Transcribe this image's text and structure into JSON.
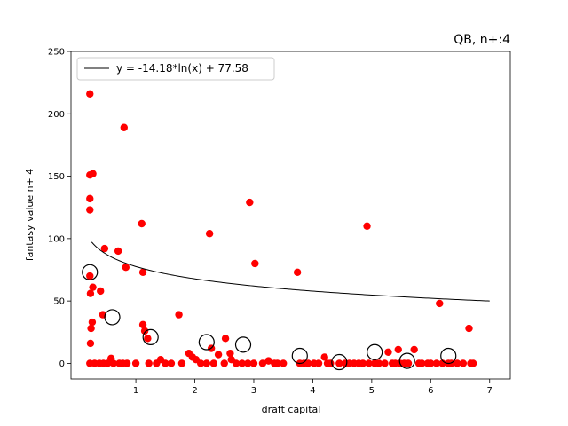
{
  "chart_data": {
    "type": "scatter",
    "title": "QB, n+:4",
    "xlabel": "draft capital",
    "ylabel": "fantasy value n+ 4",
    "xlim": [
      -0.1,
      7.35
    ],
    "ylim": [
      -12.5,
      250
    ],
    "xticks": [
      1,
      2,
      3,
      4,
      5,
      6,
      7
    ],
    "yticks": [
      0,
      50,
      100,
      150,
      200,
      250
    ],
    "legend": {
      "position": "top-left",
      "entries": [
        "y = -14.18*ln(x) + 77.58"
      ]
    },
    "fit": {
      "a": -14.18,
      "b": 77.58,
      "x_range": [
        0.25,
        7.0
      ],
      "color": "#000000"
    },
    "series": [
      {
        "marker": "dot",
        "color": "#ff0000",
        "points": [
          [
            0.22,
            216
          ],
          [
            0.22,
            151
          ],
          [
            0.27,
            152
          ],
          [
            0.22,
            132
          ],
          [
            0.22,
            123
          ],
          [
            0.22,
            70
          ],
          [
            0.27,
            61
          ],
          [
            0.23,
            56
          ],
          [
            0.26,
            33
          ],
          [
            0.24,
            28
          ],
          [
            0.23,
            16
          ],
          [
            0.22,
            0
          ],
          [
            0.3,
            0
          ],
          [
            0.4,
            58
          ],
          [
            0.47,
            92
          ],
          [
            0.44,
            39
          ],
          [
            0.38,
            0
          ],
          [
            0.45,
            0
          ],
          [
            0.52,
            0
          ],
          [
            0.58,
            4
          ],
          [
            0.62,
            0
          ],
          [
            0.7,
            90
          ],
          [
            0.8,
            189
          ],
          [
            0.83,
            77
          ],
          [
            0.72,
            0
          ],
          [
            0.78,
            0
          ],
          [
            0.85,
            0
          ],
          [
            1.0,
            0
          ],
          [
            1.1,
            112
          ],
          [
            1.12,
            73
          ],
          [
            1.12,
            31
          ],
          [
            1.15,
            26
          ],
          [
            1.2,
            20
          ],
          [
            1.22,
            0
          ],
          [
            1.35,
            0
          ],
          [
            1.42,
            3
          ],
          [
            1.5,
            0
          ],
          [
            1.6,
            0
          ],
          [
            1.73,
            39
          ],
          [
            1.78,
            0
          ],
          [
            1.9,
            8
          ],
          [
            1.96,
            5
          ],
          [
            2.02,
            3
          ],
          [
            2.1,
            0
          ],
          [
            2.2,
            0
          ],
          [
            2.25,
            104
          ],
          [
            2.28,
            12
          ],
          [
            2.32,
            0
          ],
          [
            2.4,
            7
          ],
          [
            2.52,
            20
          ],
          [
            2.5,
            0
          ],
          [
            2.6,
            8
          ],
          [
            2.62,
            3
          ],
          [
            2.7,
            0
          ],
          [
            2.8,
            0
          ],
          [
            2.9,
            0
          ],
          [
            2.93,
            129
          ],
          [
            3.0,
            0
          ],
          [
            3.02,
            80
          ],
          [
            3.15,
            0
          ],
          [
            3.25,
            2
          ],
          [
            3.35,
            0
          ],
          [
            3.4,
            0
          ],
          [
            3.5,
            0
          ],
          [
            3.74,
            73
          ],
          [
            3.78,
            0
          ],
          [
            3.85,
            0
          ],
          [
            3.92,
            0
          ],
          [
            4.02,
            0
          ],
          [
            4.1,
            0
          ],
          [
            4.2,
            5
          ],
          [
            4.25,
            0
          ],
          [
            4.3,
            0
          ],
          [
            4.45,
            0
          ],
          [
            4.55,
            0
          ],
          [
            4.62,
            0
          ],
          [
            4.7,
            0
          ],
          [
            4.78,
            0
          ],
          [
            4.85,
            0
          ],
          [
            4.92,
            110
          ],
          [
            4.95,
            0
          ],
          [
            5.05,
            0
          ],
          [
            5.12,
            0
          ],
          [
            5.22,
            0
          ],
          [
            5.28,
            9
          ],
          [
            5.35,
            0
          ],
          [
            5.4,
            0
          ],
          [
            5.45,
            11
          ],
          [
            5.48,
            0
          ],
          [
            5.55,
            0
          ],
          [
            5.62,
            0
          ],
          [
            5.72,
            11
          ],
          [
            5.8,
            0
          ],
          [
            5.85,
            0
          ],
          [
            5.95,
            0
          ],
          [
            6.0,
            0
          ],
          [
            6.1,
            0
          ],
          [
            6.15,
            48
          ],
          [
            6.2,
            0
          ],
          [
            6.3,
            0
          ],
          [
            6.35,
            0
          ],
          [
            6.45,
            0
          ],
          [
            6.55,
            0
          ],
          [
            6.65,
            28
          ],
          [
            6.68,
            0
          ],
          [
            6.72,
            0
          ]
        ]
      },
      {
        "marker": "open-circle",
        "color": "#000000",
        "points": [
          [
            0.22,
            73
          ],
          [
            0.6,
            37
          ],
          [
            1.25,
            21
          ],
          [
            2.2,
            17
          ],
          [
            2.82,
            15
          ],
          [
            3.78,
            6
          ],
          [
            4.45,
            1
          ],
          [
            5.05,
            9
          ],
          [
            5.6,
            2
          ],
          [
            6.3,
            6
          ]
        ]
      }
    ]
  }
}
